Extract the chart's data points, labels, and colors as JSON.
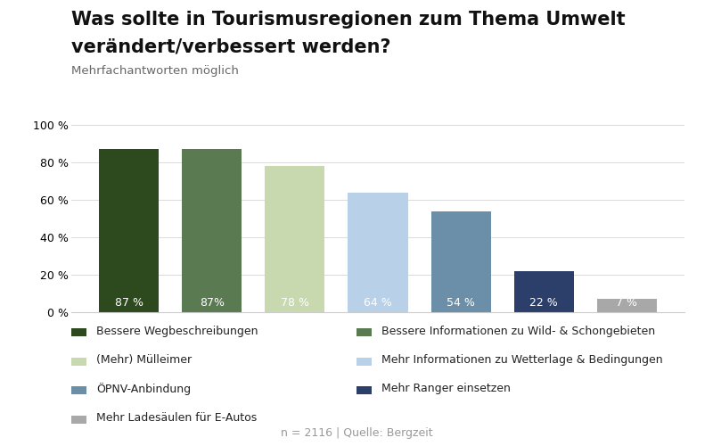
{
  "title_line1": "Was sollte in Tourismusregionen zum Thema Umwelt",
  "title_line2": "verändert/verbessert werden?",
  "subtitle": "Mehrfachantworten möglich",
  "values": [
    87,
    87,
    78,
    64,
    54,
    22,
    7
  ],
  "bar_colors": [
    "#2d4a1e",
    "#5a7a52",
    "#c8d9b0",
    "#b8d0e8",
    "#6b8fa8",
    "#2c3f6a",
    "#a8a8a8"
  ],
  "bar_labels": [
    "87 %",
    "87%",
    "78 %",
    "64 %",
    "54 %",
    "22 %",
    "7 %"
  ],
  "ylim": [
    0,
    100
  ],
  "yticks": [
    0,
    20,
    40,
    60,
    80,
    100
  ],
  "ytick_labels": [
    "0 %",
    "20 %",
    "40 %",
    "60 %",
    "80 %",
    "100 %"
  ],
  "footnote": "n = 2116 | Quelle: Bergzeit",
  "legend_col1": [
    {
      "label": "Bessere Wegbeschreibungen",
      "color": "#2d4a1e"
    },
    {
      "label": "(Mehr) Mülleimer",
      "color": "#c8d9b0"
    },
    {
      "label": "ÖPNV-Anbindung",
      "color": "#6b8fa8"
    },
    {
      "label": "Mehr Ladesäulen für E-Autos",
      "color": "#a8a8a8"
    }
  ],
  "legend_col2": [
    {
      "label": "Bessere Informationen zu Wild- & Schongebieten",
      "color": "#5a7a52"
    },
    {
      "label": "Mehr Informationen zu Wetterlage & Bedingungen",
      "color": "#b8d0e8"
    },
    {
      "label": "Mehr Ranger einsetzen",
      "color": "#2c3f6a"
    }
  ],
  "background_color": "#ffffff",
  "title_fontsize": 15,
  "subtitle_fontsize": 9.5,
  "bar_label_fontsize": 9,
  "axis_fontsize": 9,
  "legend_fontsize": 9,
  "footnote_fontsize": 9
}
